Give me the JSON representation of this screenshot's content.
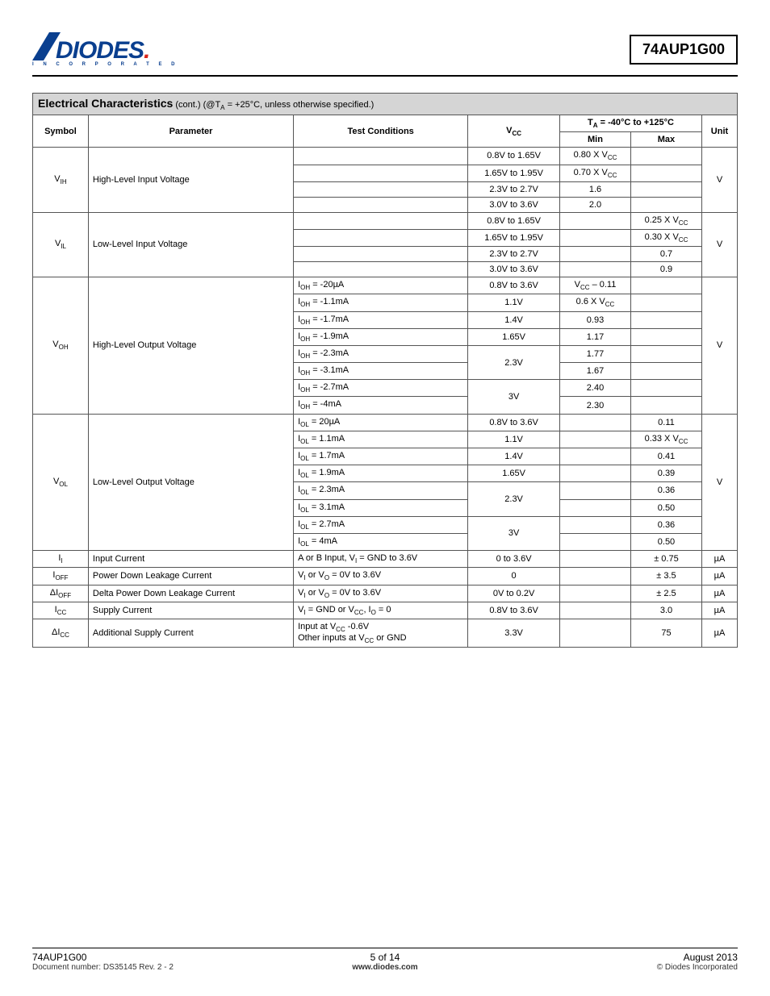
{
  "brand": {
    "name": "DIODES",
    "subtitle": "I N C O R P O R A T E D",
    "color": "#0a3f8f"
  },
  "part_number": "74AUP1G00",
  "section": {
    "title": "Electrical Characteristics",
    "cont": " (cont.) (@T",
    "cont2": " = +25°C, unless otherwise specified.)"
  },
  "table": {
    "headers": {
      "symbol": "Symbol",
      "parameter": "Parameter",
      "test_conditions": "Test Conditions",
      "vcc": "V",
      "vcc_sub": "CC",
      "ta_range": "T",
      "ta_sub": "A",
      "ta_range2": " = -40°C to +125°C",
      "min": "Min",
      "max": "Max",
      "unit": "Unit"
    },
    "groups": [
      {
        "symbol": "V",
        "symbol_sub": "IH",
        "parameter": "High-Level Input Voltage",
        "unit": "V",
        "rows": [
          {
            "tc": "",
            "vcc": "0.8V to 1.65V",
            "min": "0.80 X V",
            "min_sub": "CC",
            "max": ""
          },
          {
            "tc": "",
            "vcc": "1.65V to 1.95V",
            "min": "0.70 X V",
            "min_sub": "CC",
            "max": ""
          },
          {
            "tc": "",
            "vcc": "2.3V to 2.7V",
            "min": "1.6",
            "max": ""
          },
          {
            "tc": "",
            "vcc": "3.0V to 3.6V",
            "min": "2.0",
            "max": ""
          }
        ]
      },
      {
        "symbol": "V",
        "symbol_sub": "IL",
        "parameter": "Low-Level Input Voltage",
        "unit": "V",
        "rows": [
          {
            "tc": "",
            "vcc": "0.8V to 1.65V",
            "min": "",
            "max": "0.25 X V",
            "max_sub": "CC"
          },
          {
            "tc": "",
            "vcc": "1.65V to 1.95V",
            "min": "",
            "max": "0.30 X V",
            "max_sub": "CC"
          },
          {
            "tc": "",
            "vcc": "2.3V to 2.7V",
            "min": "",
            "max": "0.7"
          },
          {
            "tc": "",
            "vcc": "3.0V to 3.6V",
            "min": "",
            "max": "0.9"
          }
        ]
      },
      {
        "symbol": "V",
        "symbol_sub": "OH",
        "parameter": "High-Level Output Voltage",
        "unit": "V",
        "rows": [
          {
            "tc": "I",
            "tc_sub": "OH",
            "tc2": " = -20µA",
            "vcc": "0.8V to 3.6V",
            "min": "V",
            "min_sub": "CC",
            "min2": " – 0.11",
            "max": ""
          },
          {
            "tc": "I",
            "tc_sub": "OH",
            "tc2": " = -1.1mA",
            "vcc": "1.1V",
            "min": "0.6 X V",
            "min_sub": "CC",
            "max": ""
          },
          {
            "tc": "I",
            "tc_sub": "OH",
            "tc2": " = -1.7mA",
            "vcc": "1.4V",
            "min": "0.93",
            "max": ""
          },
          {
            "tc": "I",
            "tc_sub": "OH",
            "tc2": " = -1.9mA",
            "vcc": "1.65V",
            "min": "1.17",
            "max": ""
          },
          {
            "tc": "I",
            "tc_sub": "OH",
            "tc2": " = -2.3mA",
            "vcc": "2.3V",
            "vcc_rowspan": 2,
            "min": "1.77",
            "max": ""
          },
          {
            "tc": "I",
            "tc_sub": "OH",
            "tc2": " = -3.1mA",
            "min": "1.67",
            "max": ""
          },
          {
            "tc": "I",
            "tc_sub": "OH",
            "tc2": " = -2.7mA",
            "vcc": "3V",
            "vcc_rowspan": 2,
            "min": "2.40",
            "max": ""
          },
          {
            "tc": "I",
            "tc_sub": "OH",
            "tc2": " = -4mA",
            "min": "2.30",
            "max": ""
          }
        ]
      },
      {
        "symbol": "V",
        "symbol_sub": "OL",
        "parameter": "Low-Level Output Voltage",
        "unit": "V",
        "rows": [
          {
            "tc": "I",
            "tc_sub": "OL",
            "tc2": " = 20µA",
            "vcc": "0.8V to 3.6V",
            "min": "",
            "max": "0.11"
          },
          {
            "tc": "I",
            "tc_sub": "OL",
            "tc2": " = 1.1mA",
            "vcc": "1.1V",
            "min": "",
            "max": "0.33 X V",
            "max_sub": "CC"
          },
          {
            "tc": "I",
            "tc_sub": "OL",
            "tc2": " = 1.7mA",
            "vcc": "1.4V",
            "min": "",
            "max": "0.41"
          },
          {
            "tc": "I",
            "tc_sub": "OL",
            "tc2": " = 1.9mA",
            "vcc": "1.65V",
            "min": "",
            "max": "0.39"
          },
          {
            "tc": "I",
            "tc_sub": "OL",
            "tc2": " = 2.3mA",
            "vcc": "2.3V",
            "vcc_rowspan": 2,
            "min": "",
            "max": "0.36"
          },
          {
            "tc": "I",
            "tc_sub": "OL",
            "tc2": " = 3.1mA",
            "min": "",
            "max": "0.50"
          },
          {
            "tc": "I",
            "tc_sub": "OL",
            "tc2": " = 2.7mA",
            "vcc": "3V",
            "vcc_rowspan": 2,
            "min": "",
            "max": "0.36"
          },
          {
            "tc": "I",
            "tc_sub": "OL",
            "tc2": " = 4mA",
            "min": "",
            "max": "0.50"
          }
        ]
      },
      {
        "symbol": "I",
        "symbol_sub": "I",
        "parameter": "Input Current",
        "unit": "µA",
        "rows": [
          {
            "tc": "A or B Input, V",
            "tc_sub": "I",
            "tc2": " = GND to 3.6V",
            "vcc": "0 to 3.6V",
            "min": "",
            "max": "± 0.75"
          }
        ]
      },
      {
        "symbol": "I",
        "symbol_sub": "OFF",
        "parameter": "Power Down Leakage Current",
        "unit": "µA",
        "rows": [
          {
            "tc": "V",
            "tc_sub": "I",
            "tc2": " or V",
            "tc_sub2": "O",
            "tc3": " = 0V to 3.6V",
            "vcc": "0",
            "min": "",
            "max": "± 3.5"
          }
        ]
      },
      {
        "symbol": "ΔI",
        "symbol_sub": "OFF",
        "parameter": "Delta Power Down Leakage Current",
        "unit": "µA",
        "rows": [
          {
            "tc": "V",
            "tc_sub": "I",
            "tc2": " or V",
            "tc_sub2": "O",
            "tc3": " = 0V to 3.6V",
            "vcc": "0V to 0.2V",
            "min": "",
            "max": "± 2.5"
          }
        ]
      },
      {
        "symbol": "I",
        "symbol_sub": "CC",
        "parameter": "Supply Current",
        "unit": "µA",
        "rows": [
          {
            "tc": "V",
            "tc_sub": "I",
            "tc2": " =  GND or V",
            "tc_sub2": "CC",
            "tc3": ", I",
            "tc_sub3": "O",
            "tc4": " = 0",
            "vcc": "0.8V to 3.6V",
            "min": "",
            "max": "3.0"
          }
        ]
      },
      {
        "symbol": "ΔI",
        "symbol_sub": "CC",
        "parameter": "Additional Supply Current",
        "unit": "µA",
        "rows": [
          {
            "tc": "Input at V",
            "tc_sub": "CC",
            "tc2": " -0.6V",
            "tc_br": true,
            "tc3": "Other inputs at  V",
            "tc_sub3": "CC",
            "tc4": " or GND",
            "vcc": "3.3V",
            "min": "",
            "max": "75"
          }
        ]
      }
    ]
  },
  "footer": {
    "part": "74AUP1G00",
    "doc": "Document number: DS35145 Rev. 2 - 2",
    "page": "5 of 14",
    "url": "www.diodes.com",
    "date": "August 2013",
    "copyright": "© Diodes Incorporated"
  }
}
